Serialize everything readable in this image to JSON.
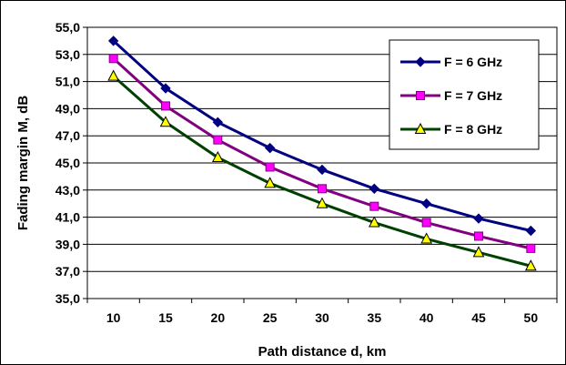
{
  "chart_data": {
    "type": "line",
    "xlabel": "Path distance d, km",
    "ylabel": "Fading margin M, dB",
    "x": [
      10,
      15,
      20,
      25,
      30,
      35,
      40,
      45,
      50
    ],
    "x_tick_labels": [
      "10",
      "15",
      "20",
      "25",
      "30",
      "35",
      "40",
      "45",
      "50"
    ],
    "ylim": [
      35.0,
      55.0
    ],
    "y_ticks": [
      35.0,
      37.0,
      39.0,
      41.0,
      43.0,
      45.0,
      47.0,
      49.0,
      51.0,
      53.0,
      55.0
    ],
    "y_tick_labels": [
      "35,0",
      "37,0",
      "39,0",
      "41,0",
      "43,0",
      "45,0",
      "47,0",
      "49,0",
      "51,0",
      "53,0",
      "55,0"
    ],
    "grid": "horizontal",
    "legend_position": "top-right",
    "series": [
      {
        "name": "F = 6 GHz",
        "line_color": "#000080",
        "marker": "diamond",
        "marker_fill": "#000080",
        "values": [
          54.0,
          50.5,
          48.0,
          46.1,
          44.5,
          43.1,
          42.0,
          40.9,
          40.0
        ]
      },
      {
        "name": "F = 7 GHz",
        "line_color": "#800080",
        "marker": "square",
        "marker_fill": "#ff00ff",
        "values": [
          52.7,
          49.2,
          46.7,
          44.7,
          43.1,
          41.8,
          40.6,
          39.6,
          38.7
        ]
      },
      {
        "name": "F = 8 GHz",
        "line_color": "#004000",
        "marker": "triangle",
        "marker_fill": "#ffff00",
        "values": [
          51.4,
          48.0,
          45.4,
          43.5,
          42.0,
          40.6,
          39.4,
          38.4,
          37.4
        ]
      }
    ]
  }
}
